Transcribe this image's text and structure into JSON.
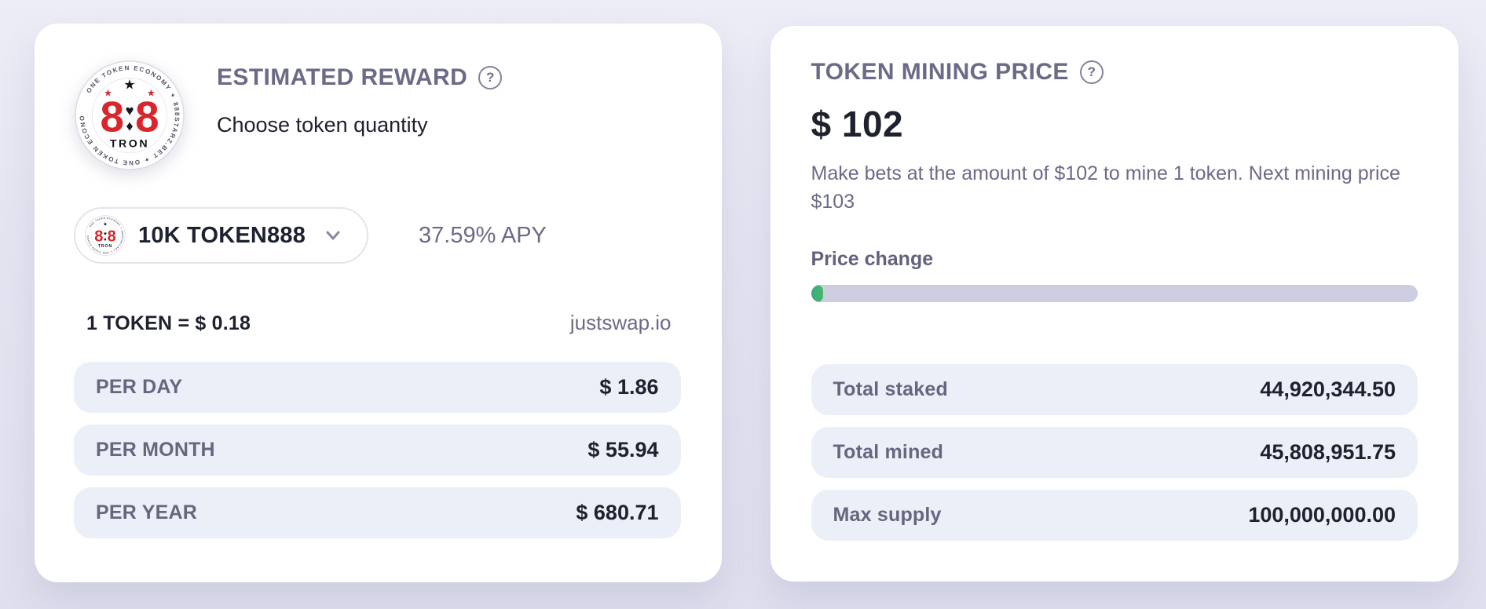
{
  "colors": {
    "accent_red": "#d8262c",
    "muted_purple": "#6b6b88",
    "dark_text": "#1e212e",
    "row_bg": "#ebeff7",
    "progress_green": "#43b06e",
    "progress_track": "#cecee3"
  },
  "logo": {
    "ring_text": "ONE TOKEN ECONOMY ✦ 888STARZ.BET ✦ ONE TOKEN ECONOMY ✦",
    "star": "★",
    "heart": "♥",
    "diamond": "♦",
    "digit": "8",
    "bottom_text": "TRON"
  },
  "reward_card": {
    "title": "ESTIMATED REWARD",
    "help_glyph": "?",
    "subtitle": "Choose token quantity",
    "selector": {
      "value": "10K TOKEN888",
      "apy": "37.59% APY"
    },
    "rate": {
      "label": "1 TOKEN = $ 0.18",
      "source": "justswap.io"
    },
    "rows": [
      {
        "label": "PER DAY",
        "value": "$ 1.86"
      },
      {
        "label": "PER MONTH",
        "value": "$ 55.94"
      },
      {
        "label": "PER YEAR",
        "value": "$ 680.71"
      }
    ]
  },
  "mining_card": {
    "title": "TOKEN MINING PRICE",
    "help_glyph": "?",
    "price": "$ 102",
    "description": "Make bets at the amount of $102 to mine 1 token. Next mining price $103",
    "price_change_label": "Price change",
    "progress_percent": 2,
    "rows": [
      {
        "label": "Total staked",
        "value": "44,920,344.50"
      },
      {
        "label": "Total mined",
        "value": "45,808,951.75"
      },
      {
        "label": "Max supply",
        "value": "100,000,000.00"
      }
    ]
  }
}
